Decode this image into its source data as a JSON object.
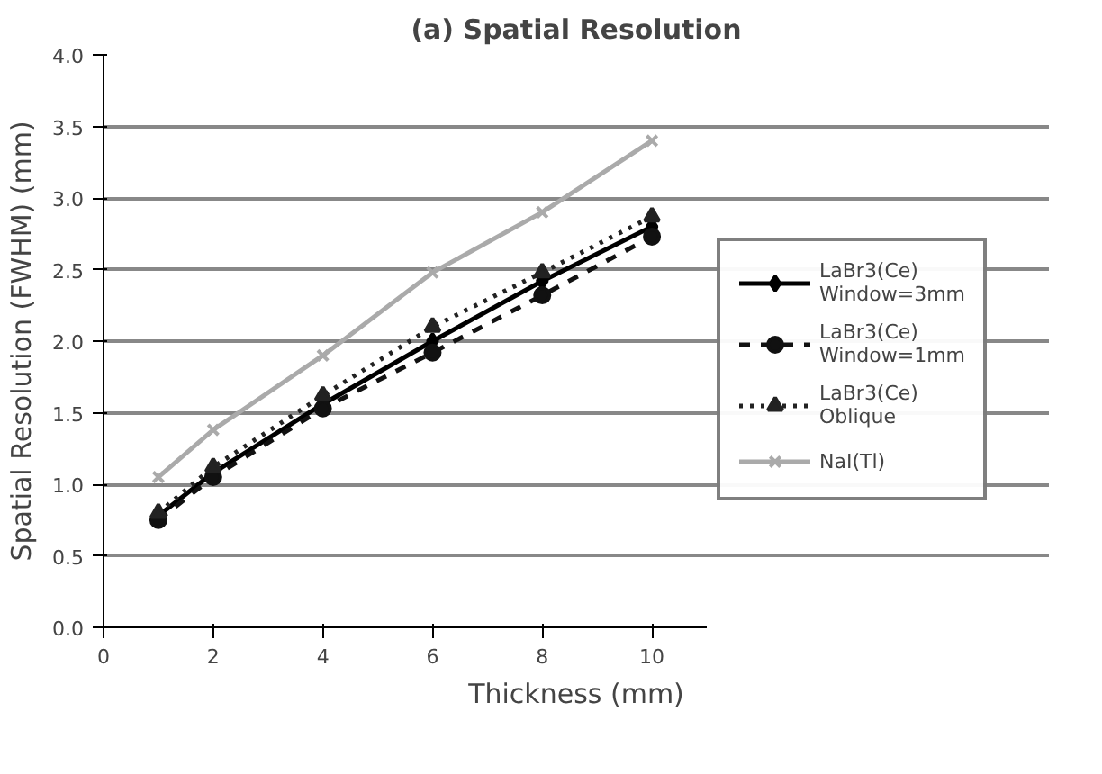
{
  "chart_data": {
    "type": "line",
    "title": "(a) Spatial Resolution",
    "xlabel": "Thickness (mm)",
    "ylabel": "Spatial Resolution (FWHM) (mm)",
    "x": [
      1,
      2,
      4,
      6,
      8,
      10
    ],
    "series": [
      {
        "name": "LaBr3(Ce)\nWindow=3mm",
        "color": "#000000",
        "values": [
          0.78,
          1.08,
          1.56,
          2.0,
          2.42,
          2.8
        ],
        "marker": "diamond",
        "line_style": "solid"
      },
      {
        "name": "LaBr3(Ce)\nWindow=1mm",
        "color": "#111111",
        "values": [
          0.75,
          1.05,
          1.53,
          1.92,
          2.32,
          2.73
        ],
        "marker": "circle",
        "line_style": "dashed"
      },
      {
        "name": "LaBr3(Ce)\nOblique",
        "color": "#222222",
        "values": [
          0.8,
          1.12,
          1.62,
          2.1,
          2.48,
          2.87
        ],
        "marker": "triangle",
        "line_style": "dotted"
      },
      {
        "name": "NaI(Tl)",
        "color": "#aaaaaa",
        "values": [
          1.05,
          1.38,
          1.9,
          2.48,
          2.9,
          3.4
        ],
        "marker": "cross",
        "line_style": "solid"
      }
    ],
    "xlim": [
      0,
      11
    ],
    "ylim": [
      0,
      4
    ],
    "xticks": [
      0,
      2,
      4,
      6,
      8,
      10
    ],
    "yticks": [
      {
        "value": 0,
        "label": "0.0"
      },
      {
        "value": 0.5,
        "label": "0.5"
      },
      {
        "value": 1,
        "label": "1.0"
      },
      {
        "value": 1.5,
        "label": "1.5"
      },
      {
        "value": 2,
        "label": "2.0"
      },
      {
        "value": 2.5,
        "label": "2.5"
      },
      {
        "value": 3,
        "label": "3.0"
      },
      {
        "value": 3.5,
        "label": "3.5"
      },
      {
        "value": 4,
        "label": "4.0"
      }
    ],
    "grid": "y",
    "legend": "right"
  }
}
